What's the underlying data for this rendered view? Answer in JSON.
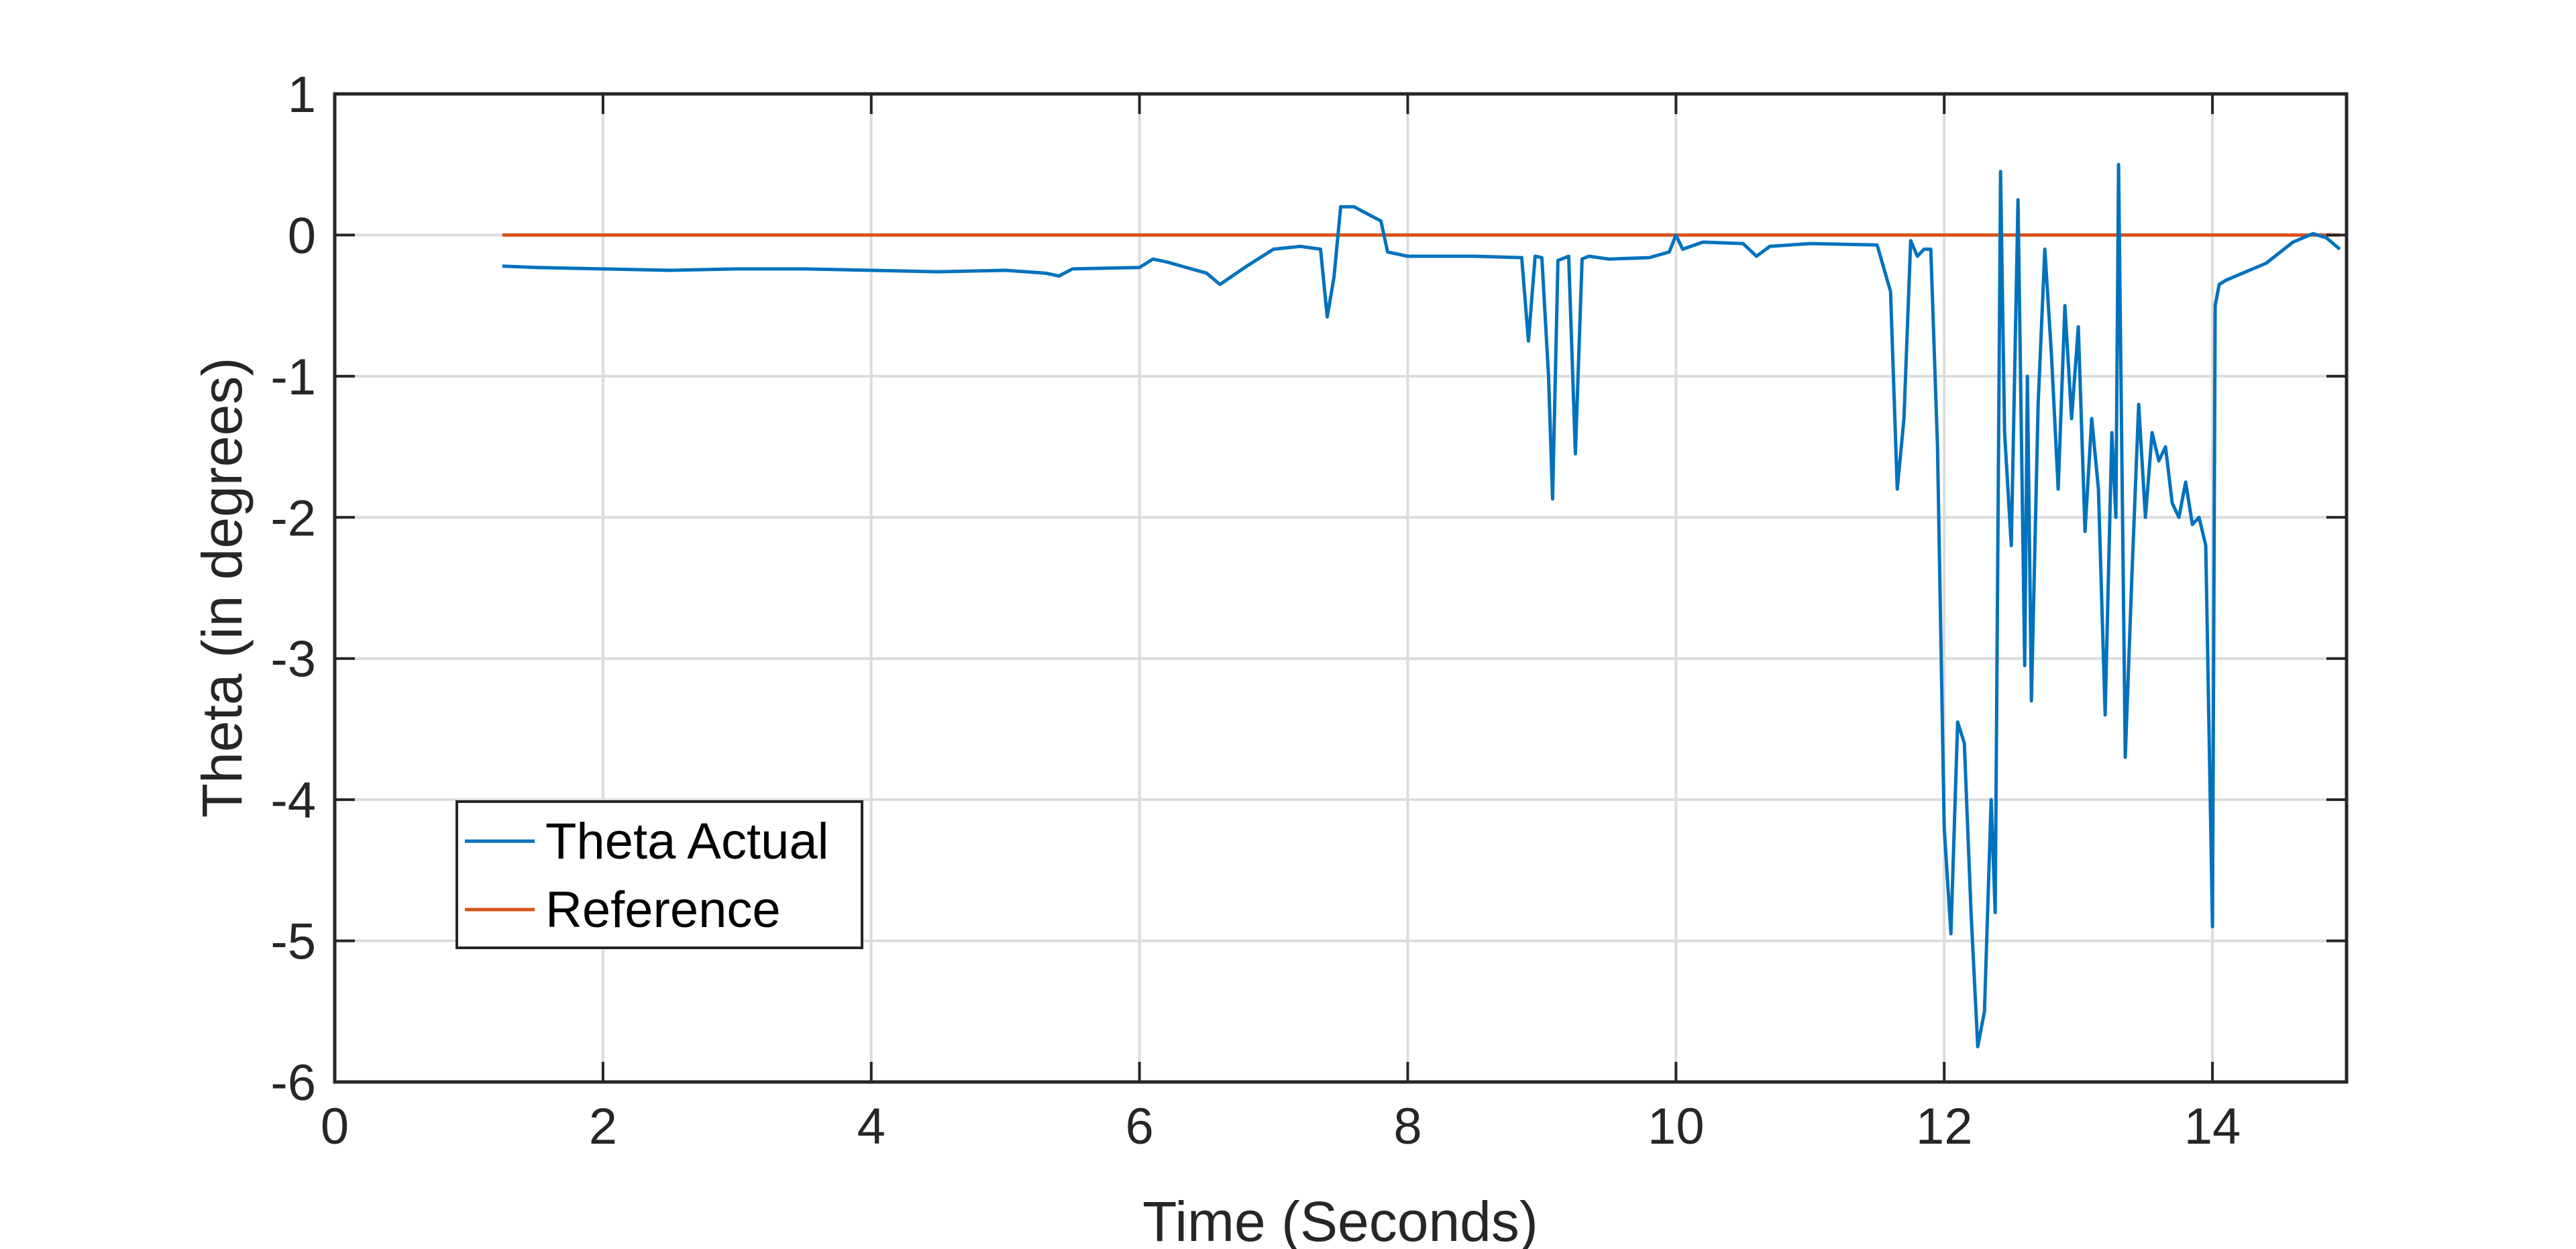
{
  "chart_data": {
    "type": "line",
    "title": "",
    "xlabel": "Time (Seconds)",
    "ylabel": "Theta (in degrees)",
    "xlim": [
      0,
      15
    ],
    "ylim": [
      -6,
      1
    ],
    "xticks": [
      0,
      2,
      4,
      6,
      8,
      10,
      12,
      14
    ],
    "yticks": [
      1,
      0,
      -1,
      -2,
      -3,
      -4,
      -5,
      -6
    ],
    "grid": true,
    "legend_position": "bottom-left",
    "series": [
      {
        "name": "Theta Actual",
        "color": "#0072BD",
        "x": [
          1.25,
          1.5,
          2.0,
          2.5,
          3.0,
          3.5,
          4.0,
          4.5,
          5.0,
          5.3,
          5.4,
          5.5,
          6.0,
          6.1,
          6.2,
          6.5,
          6.6,
          6.8,
          7.0,
          7.2,
          7.35,
          7.4,
          7.45,
          7.5,
          7.6,
          7.7,
          7.8,
          7.85,
          8.0,
          8.5,
          8.85,
          8.9,
          8.95,
          9.0,
          9.05,
          9.08,
          9.12,
          9.2,
          9.25,
          9.3,
          9.35,
          9.5,
          9.8,
          9.95,
          10.0,
          10.05,
          10.2,
          10.5,
          10.6,
          10.7,
          11.0,
          11.5,
          11.6,
          11.65,
          11.7,
          11.75,
          11.8,
          11.85,
          11.9,
          11.95,
          12.0,
          12.05,
          12.1,
          12.15,
          12.2,
          12.25,
          12.3,
          12.35,
          12.38,
          12.42,
          12.45,
          12.5,
          12.55,
          12.6,
          12.62,
          12.65,
          12.7,
          12.75,
          12.8,
          12.85,
          12.9,
          12.95,
          13.0,
          13.05,
          13.1,
          13.15,
          13.2,
          13.25,
          13.28,
          13.3,
          13.35,
          13.4,
          13.45,
          13.5,
          13.55,
          13.6,
          13.65,
          13.7,
          13.75,
          13.8,
          13.85,
          13.9,
          13.95,
          14.0,
          14.02,
          14.05,
          14.1,
          14.2,
          14.4,
          14.6,
          14.75,
          14.85,
          14.95
        ],
        "y": [
          -0.22,
          -0.23,
          -0.24,
          -0.25,
          -0.24,
          -0.24,
          -0.25,
          -0.26,
          -0.25,
          -0.27,
          -0.29,
          -0.24,
          -0.23,
          -0.17,
          -0.19,
          -0.27,
          -0.35,
          -0.22,
          -0.1,
          -0.08,
          -0.1,
          -0.58,
          -0.3,
          0.2,
          0.2,
          0.15,
          0.1,
          -0.12,
          -0.15,
          -0.15,
          -0.16,
          -0.75,
          -0.15,
          -0.16,
          -1.0,
          -1.87,
          -0.18,
          -0.15,
          -1.55,
          -0.17,
          -0.15,
          -0.17,
          -0.16,
          -0.12,
          0.0,
          -0.1,
          -0.05,
          -0.06,
          -0.15,
          -0.08,
          -0.06,
          -0.07,
          -0.4,
          -1.8,
          -1.3,
          -0.04,
          -0.15,
          -0.1,
          -0.1,
          -1.5,
          -4.2,
          -4.95,
          -3.45,
          -3.6,
          -4.8,
          -5.75,
          -5.5,
          -4.0,
          -4.8,
          0.45,
          -1.4,
          -2.2,
          0.25,
          -3.05,
          -1.0,
          -3.3,
          -1.2,
          -0.1,
          -0.85,
          -1.8,
          -0.5,
          -1.3,
          -0.65,
          -2.1,
          -1.3,
          -1.8,
          -3.4,
          -1.4,
          -2.0,
          0.5,
          -3.7,
          -2.4,
          -1.2,
          -2.0,
          -1.4,
          -1.6,
          -1.5,
          -1.9,
          -2.0,
          -1.75,
          -2.05,
          -2.0,
          -2.2,
          -4.9,
          -0.5,
          -0.35,
          -0.32,
          -0.28,
          -0.2,
          -0.05,
          0.01,
          -0.02,
          -0.1
        ]
      },
      {
        "name": "Reference",
        "color": "#D95319",
        "x": [
          1.25,
          14.95
        ],
        "y": [
          0,
          0
        ]
      }
    ]
  }
}
